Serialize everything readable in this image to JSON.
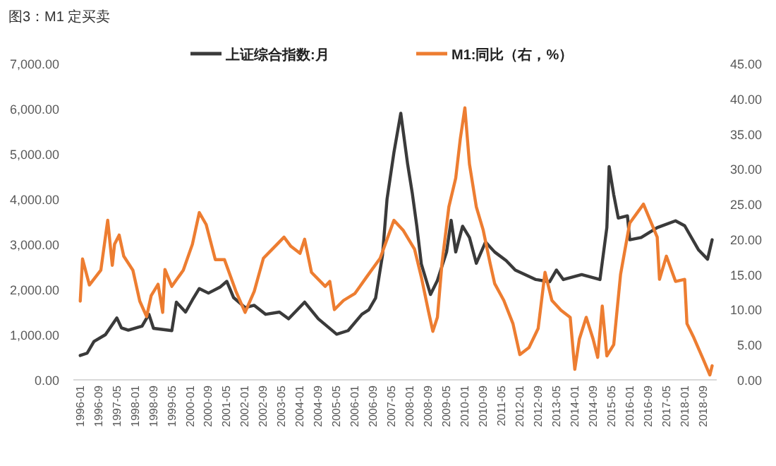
{
  "chart_data": {
    "type": "line",
    "title": "图3：M1 定买卖",
    "xlim": [
      "1995-10",
      "2019-03"
    ],
    "xticks": [
      "1996-01",
      "1996-09",
      "1997-05",
      "1998-01",
      "1998-09",
      "1999-05",
      "2000-01",
      "2000-09",
      "2001-05",
      "2002-01",
      "2002-09",
      "2003-05",
      "2004-01",
      "2004-09",
      "2005-05",
      "2006-01",
      "2006-09",
      "2007-05",
      "2008-01",
      "2008-09",
      "2009-05",
      "2010-01",
      "2010-09",
      "2011-05",
      "2012-01",
      "2012-09",
      "2013-05",
      "2014-01",
      "2014-09",
      "2015-05",
      "2016-01",
      "2016-09",
      "2017-05",
      "2018-01",
      "2018-09"
    ],
    "ylim": [
      0,
      7000
    ],
    "yticks": [
      {
        "value": 0,
        "label": "0.00"
      },
      {
        "value": 1000,
        "label": "1,000.00"
      },
      {
        "value": 2000,
        "label": "2,000.00"
      },
      {
        "value": 3000,
        "label": "3,000.00"
      },
      {
        "value": 4000,
        "label": "4,000.00"
      },
      {
        "value": 5000,
        "label": "5,000.00"
      },
      {
        "value": 6000,
        "label": "6,000.00"
      },
      {
        "value": 7000,
        "label": "7,000.00"
      }
    ],
    "y2lim": [
      0,
      45
    ],
    "y2ticks": [
      {
        "value": 0,
        "label": "0.00"
      },
      {
        "value": 5,
        "label": "5.00"
      },
      {
        "value": 10,
        "label": "10.00"
      },
      {
        "value": 15,
        "label": "15.00"
      },
      {
        "value": 20,
        "label": "20.00"
      },
      {
        "value": 25,
        "label": "25.00"
      },
      {
        "value": 30,
        "label": "30.00"
      },
      {
        "value": 35,
        "label": "35.00"
      },
      {
        "value": 40,
        "label": "40.00"
      },
      {
        "value": 45,
        "label": "45.00"
      }
    ],
    "grid": false,
    "legend": "top",
    "marker": "none",
    "line_style": "solid",
    "series": [
      {
        "name": "上证综合指数:月",
        "color": "#3a3a3a",
        "x": [
          "1996-01",
          "1996-04",
          "1996-07",
          "1996-12",
          "1997-05",
          "1997-07",
          "1997-10",
          "1998-04",
          "1998-07",
          "1998-09",
          "1999-05",
          "1999-07",
          "1999-11",
          "2000-02",
          "2000-05",
          "2000-09",
          "2001-02",
          "2001-05",
          "2001-08",
          "2002-01",
          "2002-05",
          "2002-10",
          "2003-04",
          "2003-08",
          "2004-03",
          "2004-09",
          "2005-05",
          "2005-10",
          "2006-04",
          "2006-07",
          "2006-10",
          "2007-01",
          "2007-03",
          "2007-06",
          "2007-09",
          "2007-12",
          "2008-02",
          "2008-04",
          "2008-06",
          "2008-10",
          "2009-01",
          "2009-05",
          "2009-07",
          "2009-09",
          "2009-12",
          "2010-03",
          "2010-06",
          "2010-10",
          "2011-02",
          "2011-07",
          "2011-11",
          "2012-08",
          "2013-02",
          "2013-05",
          "2013-08",
          "2014-04",
          "2014-12",
          "2015-03",
          "2015-04",
          "2015-06",
          "2015-08",
          "2015-12",
          "2016-01",
          "2016-06",
          "2017-01",
          "2017-09",
          "2018-01",
          "2018-07",
          "2018-11",
          "2019-01"
        ],
        "values": [
          540,
          590,
          850,
          1000,
          1370,
          1150,
          1100,
          1190,
          1450,
          1140,
          1090,
          1720,
          1500,
          1770,
          2020,
          1920,
          2050,
          2180,
          1820,
          1600,
          1650,
          1450,
          1500,
          1350,
          1720,
          1350,
          1010,
          1090,
          1450,
          1550,
          1810,
          2750,
          4000,
          5030,
          5900,
          4770,
          4140,
          3400,
          2560,
          1890,
          2200,
          2830,
          3530,
          2830,
          3400,
          3150,
          2580,
          3050,
          2830,
          2640,
          2430,
          2220,
          2170,
          2430,
          2220,
          2330,
          2220,
          3370,
          4720,
          4100,
          3580,
          3630,
          3100,
          3150,
          3370,
          3520,
          3410,
          2880,
          2670,
          3100
        ]
      },
      {
        "name": "M1:同比（右，%）",
        "color": "#ed7d31",
        "axis": "y2",
        "x": [
          "1996-01",
          "1996-02",
          "1996-05",
          "1996-10",
          "1997-01",
          "1997-03",
          "1997-04",
          "1997-06",
          "1997-08",
          "1997-12",
          "1998-03",
          "1998-06",
          "1998-08",
          "1998-11",
          "1999-01",
          "1999-02",
          "1999-05",
          "1999-10",
          "2000-02",
          "2000-05",
          "2000-08",
          "2000-12",
          "2001-04",
          "2001-09",
          "2002-01",
          "2002-05",
          "2002-09",
          "2003-03",
          "2003-06",
          "2003-09",
          "2004-01",
          "2004-03",
          "2004-06",
          "2004-12",
          "2005-02",
          "2005-04",
          "2005-08",
          "2006-01",
          "2006-06",
          "2006-12",
          "2007-06",
          "2007-10",
          "2008-03",
          "2008-06",
          "2008-09",
          "2008-11",
          "2009-01",
          "2009-03",
          "2009-06",
          "2009-09",
          "2009-11",
          "2010-01",
          "2010-03",
          "2010-06",
          "2010-09",
          "2010-12",
          "2011-02",
          "2011-06",
          "2011-10",
          "2012-01",
          "2012-05",
          "2012-09",
          "2012-12",
          "2013-03",
          "2013-07",
          "2013-11",
          "2014-01",
          "2014-03",
          "2014-06",
          "2014-09",
          "2014-11",
          "2015-01",
          "2015-03",
          "2015-06",
          "2015-09",
          "2016-01",
          "2016-07",
          "2017-01",
          "2017-02",
          "2017-05",
          "2017-09",
          "2018-01",
          "2018-02",
          "2018-05",
          "2018-09",
          "2018-12",
          "2019-01"
        ],
        "values": [
          11.2,
          17.2,
          13.5,
          15.6,
          22.7,
          16.3,
          19.3,
          20.6,
          17.6,
          15.6,
          11.2,
          9.0,
          12.0,
          13.6,
          9.6,
          15.7,
          13.3,
          15.6,
          19.3,
          23.8,
          22.1,
          17.1,
          17.1,
          12.6,
          9.6,
          12.6,
          17.3,
          19.3,
          20.3,
          19.0,
          18.0,
          20.0,
          15.3,
          13.3,
          14.0,
          10.0,
          11.3,
          12.3,
          14.6,
          17.3,
          22.7,
          21.3,
          18.6,
          14.6,
          9.9,
          6.9,
          8.9,
          16.6,
          24.6,
          28.7,
          34.3,
          38.7,
          30.7,
          24.6,
          21.3,
          16.6,
          13.7,
          11.3,
          8.0,
          3.6,
          4.6,
          7.3,
          15.3,
          11.3,
          9.9,
          8.9,
          1.5,
          5.8,
          8.9,
          5.8,
          3.2,
          10.5,
          3.4,
          5.0,
          15.0,
          22.3,
          25.0,
          20.3,
          14.3,
          17.6,
          14.0,
          14.3,
          8.0,
          6.0,
          3.0,
          0.7,
          2.0
        ]
      }
    ]
  }
}
